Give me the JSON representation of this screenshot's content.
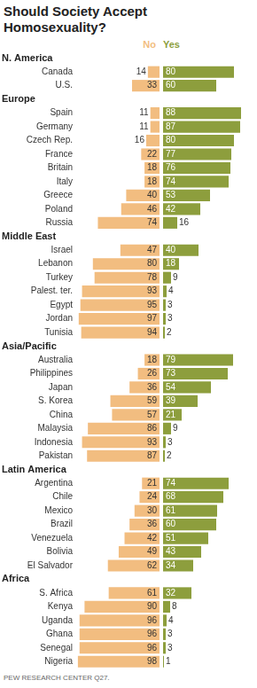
{
  "chart_data": {
    "type": "bar",
    "title": "Should Society Accept Homosexuality?",
    "source": "PEW RESEARCH CENTER Q27.",
    "orientation": "horizontal",
    "data_labels": true,
    "grid": false,
    "tick_labels": false,
    "legend": "top",
    "xlim": [
      0,
      100
    ],
    "groups": [
      {
        "name": "N. America",
        "categories": [
          "Canada",
          "U.S."
        ]
      },
      {
        "name": "Europe",
        "categories": [
          "Spain",
          "Germany",
          "Czech Rep.",
          "France",
          "Britain",
          "Italy",
          "Greece",
          "Poland",
          "Russia"
        ]
      },
      {
        "name": "Middle East",
        "categories": [
          "Israel",
          "Lebanon",
          "Turkey",
          "Palest. ter.",
          "Egypt",
          "Jordan",
          "Tunisia"
        ]
      },
      {
        "name": "Asia/Pacific",
        "categories": [
          "Australia",
          "Philippines",
          "Japan",
          "S. Korea",
          "China",
          "Malaysia",
          "Indonesia",
          "Pakistan"
        ]
      },
      {
        "name": "Latin America",
        "categories": [
          "Argentina",
          "Chile",
          "Mexico",
          "Brazil",
          "Venezuela",
          "Bolivia",
          "El Salvador"
        ]
      },
      {
        "name": "Africa",
        "categories": [
          "S. Africa",
          "Kenya",
          "Uganda",
          "Ghana",
          "Senegal",
          "Nigeria"
        ]
      }
    ],
    "series": [
      {
        "name": "No",
        "color": "#f2bd80",
        "values": [
          14,
          33,
          11,
          11,
          16,
          22,
          18,
          18,
          40,
          46,
          74,
          47,
          80,
          78,
          93,
          95,
          97,
          94,
          18,
          26,
          36,
          59,
          57,
          86,
          93,
          87,
          21,
          24,
          30,
          36,
          42,
          49,
          62,
          61,
          90,
          96,
          96,
          96,
          98
        ]
      },
      {
        "name": "Yes",
        "color": "#8d9e3d",
        "values": [
          80,
          60,
          88,
          87,
          80,
          77,
          76,
          74,
          53,
          42,
          16,
          40,
          18,
          9,
          4,
          3,
          3,
          2,
          79,
          73,
          54,
          39,
          21,
          9,
          3,
          2,
          74,
          68,
          61,
          60,
          51,
          43,
          34,
          32,
          8,
          4,
          3,
          3,
          1
        ]
      }
    ]
  }
}
